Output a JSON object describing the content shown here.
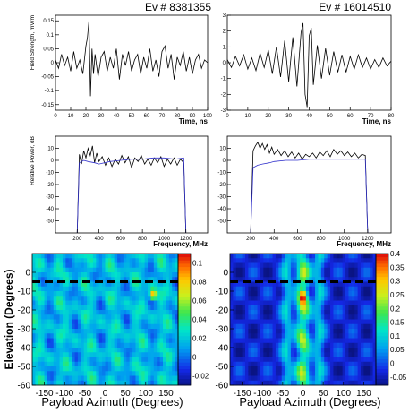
{
  "figure": {
    "left_title": "Ev # 8381355",
    "right_title": "Ev # 16014510"
  },
  "chart_data": [
    {
      "type": "line",
      "panel": "waveform-left",
      "title": "Ev # 8381355",
      "ylabel": "Field Strength, mV/m",
      "xlabel": "Time, ns",
      "xlim": [
        0,
        100
      ],
      "ylim": [
        -0.17,
        0.17
      ],
      "xticks": [
        0,
        10,
        20,
        30,
        40,
        50,
        60,
        70,
        80,
        90,
        100
      ],
      "xtick_labels": [
        "0",
        "10",
        "20",
        "30",
        "40",
        "50",
        "60",
        "70",
        "80",
        "90",
        "100"
      ],
      "yticks": [
        -0.15,
        -0.1,
        -0.05,
        0,
        0.05,
        0.1,
        0.15
      ],
      "ytick_labels": [
        "-0.15",
        "-0.1",
        "-0.05",
        "0",
        "0.05",
        "0.1",
        "0.15"
      ],
      "series": [
        {
          "color": "#000000",
          "x": [
            0,
            2,
            4,
            6,
            8,
            10,
            12,
            14,
            16,
            18,
            20,
            21,
            22,
            23,
            24,
            25,
            26,
            28,
            30,
            32,
            34,
            36,
            38,
            40,
            42,
            44,
            46,
            48,
            50,
            52,
            54,
            56,
            58,
            60,
            62,
            64,
            66,
            68,
            70,
            72,
            74,
            76,
            78,
            80,
            82,
            84,
            86,
            88,
            90,
            92,
            94,
            96,
            98,
            100
          ],
          "y": [
            0.01,
            -0.02,
            0.03,
            -0.01,
            0.02,
            -0.03,
            0.04,
            -0.02,
            0.01,
            -0.04,
            0.06,
            0.09,
            0.15,
            -0.12,
            0.05,
            -0.04,
            0.03,
            -0.05,
            0.02,
            0.04,
            -0.03,
            0.02,
            -0.02,
            0.05,
            -0.06,
            0.03,
            -0.01,
            0.04,
            -0.03,
            0.01,
            0.03,
            -0.04,
            0.02,
            -0.02,
            0.05,
            -0.03,
            0.01,
            -0.05,
            0.04,
            0.06,
            -0.02,
            0.03,
            -0.06,
            0.02,
            -0.01,
            0.04,
            -0.03,
            0.02,
            -0.04,
            0.01,
            0.03,
            -0.02,
            0.01,
            0
          ]
        }
      ]
    },
    {
      "type": "line",
      "panel": "waveform-right",
      "title": "Ev # 16014510",
      "xlabel": "Time, ns",
      "xlim": [
        0,
        80
      ],
      "ylim": [
        -3,
        3
      ],
      "xticks": [
        0,
        10,
        20,
        30,
        40,
        50,
        60,
        70,
        80
      ],
      "xtick_labels": [
        "0",
        "10",
        "20",
        "30",
        "40",
        "50",
        "60",
        "70",
        "80"
      ],
      "yticks": [
        -3,
        -2,
        -1,
        0,
        1,
        2,
        3
      ],
      "ytick_labels": [
        "-3",
        "-2",
        "-1",
        "0",
        "1",
        "2",
        "3"
      ],
      "series": [
        {
          "color": "#000000",
          "x": [
            0,
            2,
            4,
            6,
            8,
            10,
            12,
            14,
            16,
            18,
            20,
            22,
            24,
            26,
            28,
            30,
            32,
            34,
            36,
            37,
            38,
            39,
            40,
            41,
            42,
            44,
            46,
            48,
            50,
            52,
            54,
            56,
            58,
            60,
            62,
            64,
            66,
            68,
            70,
            72,
            74,
            76,
            78,
            80
          ],
          "y": [
            0.2,
            -0.3,
            0.4,
            -0.2,
            0.5,
            -0.4,
            0.3,
            -0.5,
            0.6,
            -0.3,
            0.8,
            -0.7,
            1.0,
            -0.9,
            1.4,
            -1.2,
            1.6,
            -1.5,
            1.9,
            2.5,
            -2.0,
            -2.8,
            1.7,
            2.2,
            -1.4,
            1.1,
            -1.0,
            0.9,
            -0.8,
            0.7,
            -0.6,
            0.5,
            -0.6,
            0.4,
            -0.4,
            0.5,
            -0.3,
            0.3,
            -0.4,
            0.2,
            -0.3,
            0.3,
            -0.2,
            0.1
          ]
        }
      ]
    },
    {
      "type": "line",
      "panel": "spectrum-left",
      "ylabel": "Relative Power, dB",
      "xlabel": "Frequency, MHz",
      "xlim": [
        0,
        1400
      ],
      "ylim": [
        -60,
        20
      ],
      "xticks": [
        200,
        400,
        600,
        800,
        1000,
        1200
      ],
      "xtick_labels": [
        "200",
        "400",
        "600",
        "800",
        "1000",
        "1200"
      ],
      "yticks": [
        -50,
        -40,
        -30,
        -20,
        -10,
        0,
        10
      ],
      "ytick_labels": [
        "-50",
        "-40",
        "-30",
        "-20",
        "-10",
        "0",
        "10"
      ],
      "series": [
        {
          "color": "#000000",
          "x": [
            200,
            220,
            240,
            260,
            280,
            300,
            320,
            340,
            360,
            380,
            400,
            430,
            460,
            490,
            520,
            550,
            580,
            610,
            640,
            670,
            700,
            730,
            760,
            790,
            820,
            850,
            880,
            910,
            940,
            970,
            1000,
            1030,
            1060,
            1090,
            1120,
            1150,
            1180,
            1200
          ],
          "y": [
            -60,
            5,
            -3,
            8,
            2,
            10,
            4,
            12,
            -2,
            6,
            -1,
            3,
            -4,
            2,
            -5,
            1,
            -3,
            4,
            -2,
            3,
            -6,
            2,
            -1,
            4,
            -3,
            1,
            -4,
            2,
            -2,
            3,
            -5,
            1,
            -3,
            2,
            -4,
            1,
            -2,
            -60
          ]
        },
        {
          "color": "#3333cc",
          "x": [
            200,
            220,
            260,
            300,
            360,
            400,
            500,
            600,
            700,
            800,
            900,
            1000,
            1100,
            1180,
            1200
          ],
          "y": [
            -60,
            -2,
            0,
            -1,
            -2,
            -3,
            -1,
            0,
            1,
            1,
            2,
            2,
            1,
            2,
            -60
          ]
        }
      ]
    },
    {
      "type": "line",
      "panel": "spectrum-right",
      "xlabel": "Frequency, MHz",
      "xlim": [
        0,
        1400
      ],
      "ylim": [
        -60,
        20
      ],
      "xticks": [
        200,
        400,
        600,
        800,
        1000,
        1200
      ],
      "xtick_labels": [
        "200",
        "400",
        "600",
        "800",
        "1000",
        "1200"
      ],
      "yticks": [
        -50,
        -40,
        -30,
        -20,
        -10,
        0,
        10
      ],
      "ytick_labels": [
        "-50",
        "-40",
        "-30",
        "-20",
        "-10",
        "0",
        "10"
      ],
      "series": [
        {
          "color": "#000000",
          "x": [
            200,
            220,
            240,
            260,
            280,
            300,
            320,
            340,
            360,
            380,
            400,
            430,
            460,
            490,
            520,
            550,
            580,
            610,
            640,
            670,
            700,
            730,
            760,
            790,
            820,
            850,
            880,
            910,
            940,
            970,
            1000,
            1030,
            1060,
            1090,
            1120,
            1150,
            1180,
            1200
          ],
          "y": [
            -60,
            8,
            12,
            15,
            10,
            14,
            9,
            13,
            6,
            11,
            5,
            9,
            4,
            8,
            3,
            7,
            2,
            6,
            1,
            5,
            3,
            6,
            2,
            7,
            4,
            8,
            3,
            9,
            5,
            8,
            4,
            7,
            3,
            6,
            2,
            5,
            4,
            -60
          ]
        },
        {
          "color": "#3333cc",
          "x": [
            200,
            220,
            260,
            300,
            360,
            400,
            500,
            600,
            700,
            800,
            900,
            1000,
            1100,
            1180,
            1200
          ],
          "y": [
            -60,
            -6,
            -4,
            -3,
            -2,
            -1,
            0,
            0,
            1,
            1,
            1,
            1,
            1,
            1,
            -60
          ]
        }
      ]
    },
    {
      "type": "heatmap",
      "panel": "skymap-left",
      "xlabel": "Payload Azimuth (Degrees)",
      "ylabel": "Elevation (Degrees)",
      "xlim": [
        -180,
        180
      ],
      "ylim": [
        -60,
        10
      ],
      "xticks": [
        -150,
        -100,
        -50,
        0,
        50,
        100,
        150
      ],
      "xtick_labels": [
        "-150",
        "-100",
        "-50",
        "0",
        "50",
        "100",
        "150"
      ],
      "yticks": [
        -60,
        -50,
        -40,
        -30,
        -20,
        -10,
        0
      ],
      "ytick_labels": [
        "-60",
        "-50",
        "-40",
        "-30",
        "-20",
        "-10",
        "0"
      ],
      "colorbar": {
        "range": [
          -0.03,
          0.11
        ],
        "ticks": [
          -0.02,
          0,
          0.02,
          0.04,
          0.06,
          0.08,
          0.1
        ],
        "tick_labels": [
          "-0.02",
          "0",
          "0.02",
          "0.04",
          "0.06",
          "0.08",
          "0.1"
        ]
      },
      "peak": {
        "azimuth": 118,
        "elevation": -12,
        "value": 0.11
      },
      "horizon_line_elevation": -5
    },
    {
      "type": "heatmap",
      "panel": "skymap-right",
      "xlabel": "Payload Azimuth (Degrees)",
      "xlim": [
        -180,
        180
      ],
      "ylim": [
        -60,
        10
      ],
      "xticks": [
        -150,
        -100,
        -50,
        0,
        50,
        100,
        150
      ],
      "xtick_labels": [
        "-150",
        "-100",
        "-50",
        "0",
        "50",
        "100",
        "150"
      ],
      "yticks": [
        -60,
        -50,
        -40,
        -30,
        -20,
        -10,
        0
      ],
      "ytick_labels": [
        "-60",
        "-50",
        "-40",
        "-30",
        "-20",
        "-10",
        "0"
      ],
      "colorbar": {
        "range": [
          -0.08,
          0.4
        ],
        "ticks": [
          -0.05,
          0,
          0.05,
          0.1,
          0.15,
          0.2,
          0.25,
          0.3,
          0.35,
          0.4
        ],
        "tick_labels": [
          "-0.05",
          "0",
          "0.05",
          "0.1",
          "0.15",
          "0.2",
          "0.25",
          "0.3",
          "0.35",
          "0.4"
        ]
      },
      "peak": {
        "azimuth": 0,
        "elevation": -13,
        "value": 0.4
      },
      "horizon_line_elevation": -5
    }
  ]
}
